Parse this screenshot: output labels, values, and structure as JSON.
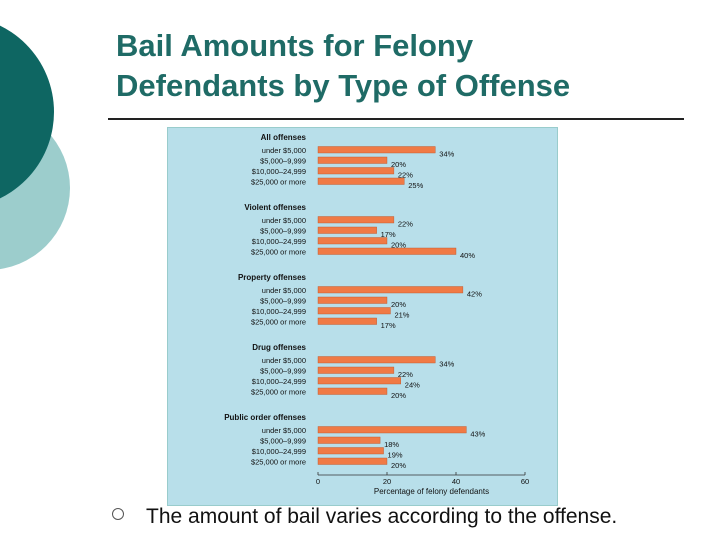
{
  "slide": {
    "title_line1": "Bail Amounts for Felony",
    "title_line2": "Defendants by Type of Offense",
    "bullet_text": "The amount of bail varies according to the offense.",
    "colors": {
      "title": "#1f6b66",
      "dark_teal": "#0e6662",
      "light_teal": "#9ccdcc",
      "panel_bg": "#b8dfea",
      "bar": "#f07a45"
    }
  },
  "chart_data": {
    "type": "bar",
    "orientation": "horizontal",
    "xlabel": "Percentage of felony defendants",
    "xlim": [
      0,
      60
    ],
    "xticks": [
      0,
      20,
      40,
      60
    ],
    "groups": [
      {
        "name": "All offenses",
        "rows": [
          {
            "label": "under $5,000",
            "value": 34,
            "value_label": "34%"
          },
          {
            "label": "$5,000–9,999",
            "value": 20,
            "value_label": "20%"
          },
          {
            "label": "$10,000–24,999",
            "value": 22,
            "value_label": "22%"
          },
          {
            "label": "$25,000 or more",
            "value": 25,
            "value_label": "25%"
          }
        ]
      },
      {
        "name": "Violent offenses",
        "rows": [
          {
            "label": "under $5,000",
            "value": 22,
            "value_label": "22%"
          },
          {
            "label": "$5,000–9,999",
            "value": 17,
            "value_label": "17%"
          },
          {
            "label": "$10,000–24,999",
            "value": 20,
            "value_label": "20%"
          },
          {
            "label": "$25,000 or more",
            "value": 40,
            "value_label": "40%"
          }
        ]
      },
      {
        "name": "Property offenses",
        "rows": [
          {
            "label": "under $5,000",
            "value": 42,
            "value_label": "42%"
          },
          {
            "label": "$5,000–9,999",
            "value": 20,
            "value_label": "20%"
          },
          {
            "label": "$10,000–24,999",
            "value": 21,
            "value_label": "21%"
          },
          {
            "label": "$25,000 or more",
            "value": 17,
            "value_label": "17%"
          }
        ]
      },
      {
        "name": "Drug offenses",
        "rows": [
          {
            "label": "under $5,000",
            "value": 34,
            "value_label": "34%"
          },
          {
            "label": "$5,000–9,999",
            "value": 22,
            "value_label": "22%"
          },
          {
            "label": "$10,000–24,999",
            "value": 24,
            "value_label": "24%"
          },
          {
            "label": "$25,000 or more",
            "value": 20,
            "value_label": "20%"
          }
        ]
      },
      {
        "name": "Public order offenses",
        "rows": [
          {
            "label": "under $5,000",
            "value": 43,
            "value_label": "43%"
          },
          {
            "label": "$5,000–9,999",
            "value": 18,
            "value_label": "18%"
          },
          {
            "label": "$10,000–24,999",
            "value": 19,
            "value_label": "19%"
          },
          {
            "label": "$25,000 or more",
            "value": 20,
            "value_label": "20%"
          }
        ]
      }
    ]
  }
}
